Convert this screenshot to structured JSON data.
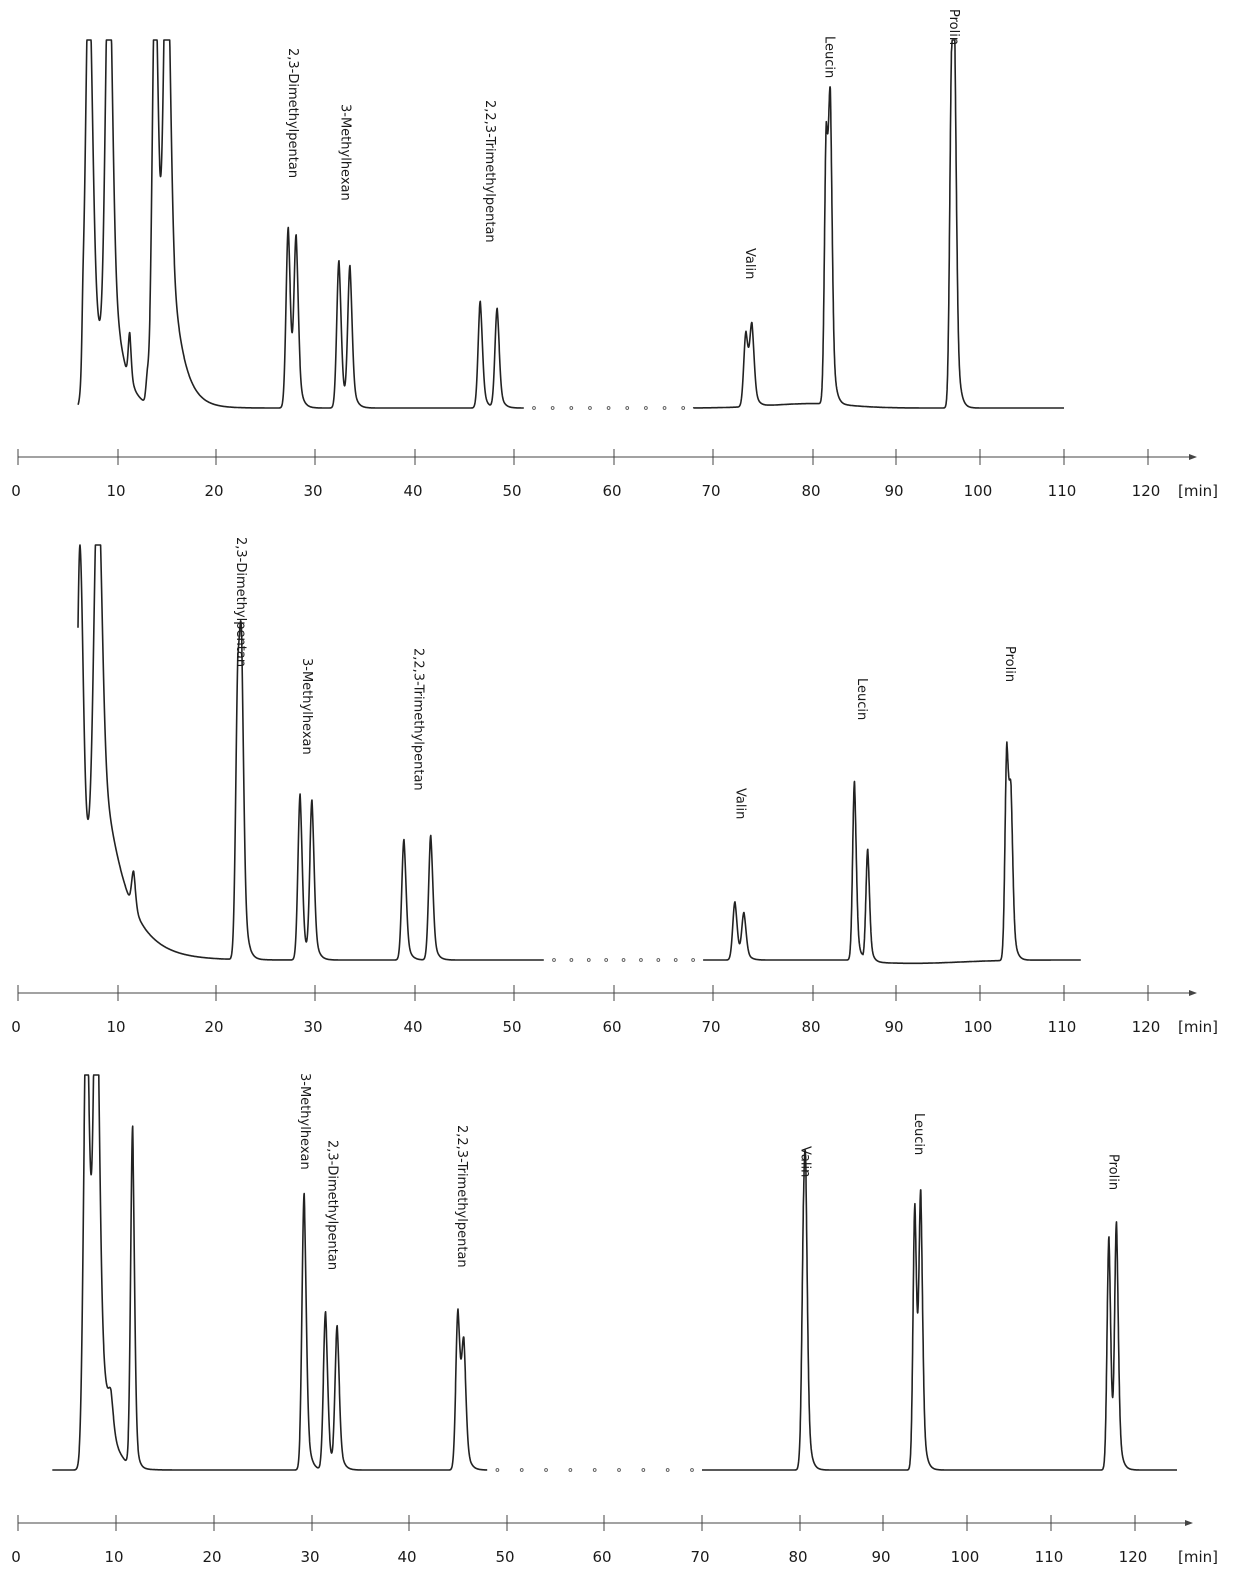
{
  "chart_data": [
    {
      "type": "line",
      "title": "",
      "xlabel": "[min]",
      "ylabel": "",
      "x_ticks": [
        "0",
        "10",
        "20",
        "30",
        "40",
        "50",
        "60",
        "70",
        "80",
        "90",
        "100",
        "110",
        "120"
      ],
      "tick_values": [
        0,
        10,
        20,
        30,
        40,
        50,
        60,
        70,
        80,
        90,
        100,
        110,
        120
      ],
      "x_unit": "[min]",
      "x_break": [
        51,
        68
      ],
      "solvent_peaks": [
        {
          "x": 6.5,
          "y": 0.1,
          "w": 0.1
        },
        {
          "x": 7.1,
          "y": 1.2,
          "w": 0.35,
          "tail": 1.2
        },
        {
          "x": 9.1,
          "y": 1.2,
          "w": 0.35,
          "tail": 1.0
        },
        {
          "x": 11.2,
          "y": 0.13,
          "w": 0.15
        },
        {
          "x": 13.0,
          "y": 0.06,
          "w": 0.15
        },
        {
          "x": 13.8,
          "y": 1.2,
          "w": 0.3,
          "tail": 1.0
        },
        {
          "x": 15.0,
          "y": 1.2,
          "w": 0.35,
          "tail": 1.2
        }
      ],
      "peaks": [
        {
          "name": "2,3-Dimethylpentan",
          "x": [
            27.3,
            28.1
          ],
          "y": [
            0.49,
            0.45
          ]
        },
        {
          "name": "3-Methylhexan",
          "x": [
            32.4,
            33.5
          ],
          "y": [
            0.4,
            0.38
          ]
        },
        {
          "name": "2,2,3-Trimethylpentan",
          "x": [
            46.6,
            48.3
          ],
          "y": [
            0.29,
            0.27
          ]
        },
        {
          "name": "Valin",
          "x": [
            73.3,
            73.9
          ],
          "y": [
            0.2,
            0.21
          ]
        },
        {
          "name": "Leucin",
          "x": [
            81.6,
            82.1
          ],
          "y": [
            0.71,
            0.75
          ]
        },
        {
          "name": "Prolin",
          "x": [
            96.6,
            97.0
          ],
          "y": [
            0.81,
            0.82
          ]
        }
      ],
      "ylim": [
        0,
        1
      ]
    },
    {
      "type": "line",
      "title": "",
      "xlabel": "[min]",
      "ylabel": "",
      "x_ticks": [
        "0",
        "10",
        "20",
        "30",
        "40",
        "50",
        "60",
        "70",
        "80",
        "90",
        "100",
        "110",
        "120"
      ],
      "tick_values": [
        0,
        10,
        20,
        30,
        40,
        50,
        60,
        70,
        80,
        90,
        100,
        110,
        120
      ],
      "x_unit": "[min]",
      "x_break": [
        53,
        69
      ],
      "solvent_peaks": [
        {
          "x": 6.2,
          "y": 1.0,
          "w": 0.3,
          "tail": 2.2
        },
        {
          "x": 8.0,
          "y": 1.0,
          "w": 0.4,
          "tail": 2.4
        },
        {
          "x": 11.6,
          "y": 0.09,
          "w": 0.2
        }
      ],
      "peaks": [
        {
          "name": "2,3-Dimethylpentan",
          "x": [
            22.2,
            22.6
          ],
          "y": [
            0.61,
            0.63
          ]
        },
        {
          "name": "3-Methylhexan",
          "x": [
            28.5,
            29.7
          ],
          "y": [
            0.4,
            0.38
          ]
        },
        {
          "name": "2,2,3-Trimethylpentan",
          "x": [
            38.9,
            41.6
          ],
          "y": [
            0.29,
            0.3
          ]
        },
        {
          "name": "Valin",
          "x": [
            72.2,
            73.1
          ],
          "y": [
            0.14,
            0.11
          ]
        },
        {
          "name": "Leucin",
          "x": [
            85.0,
            86.6
          ],
          "y": [
            0.43,
            0.27
          ]
        },
        {
          "name": "Prolin",
          "x": [
            103.2,
            103.7
          ],
          "y": [
            0.5,
            0.35
          ]
        }
      ],
      "ylim": [
        0,
        1
      ]
    },
    {
      "type": "line",
      "title": "",
      "xlabel": "[min]",
      "ylabel": "",
      "x_ticks": [
        "0",
        "10",
        "20",
        "30",
        "40",
        "50",
        "60",
        "70",
        "80",
        "90",
        "100",
        "110",
        "120"
      ],
      "tick_values": [
        0,
        10,
        20,
        30,
        40,
        50,
        60,
        70,
        80,
        90,
        100,
        110,
        120
      ],
      "x_unit": "[min]",
      "x_break": [
        48,
        70
      ],
      "solvent_peaks": [
        {
          "x": 7.0,
          "y": 1.2,
          "w": 0.3,
          "tail": 0.9
        },
        {
          "x": 8.0,
          "y": 1.2,
          "w": 0.3,
          "tail": 0.9
        },
        {
          "x": 9.5,
          "y": 0.08,
          "w": 0.25
        },
        {
          "x": 11.7,
          "y": 0.86,
          "w": 0.2
        }
      ],
      "peaks": [
        {
          "name": "3-Methylhexan",
          "x": [
            29.2
          ],
          "y": [
            0.7
          ]
        },
        {
          "name": "2,3-Dimethylpentan",
          "x": [
            31.4,
            32.6
          ],
          "y": [
            0.4,
            0.36
          ]
        },
        {
          "name": "2,2,3-Trimethylpentan",
          "x": [
            45.0,
            45.6
          ],
          "y": [
            0.4,
            0.3
          ]
        },
        {
          "name": "Valin",
          "x": [
            80.4,
            80.7
          ],
          "y": [
            0.43,
            0.6
          ]
        },
        {
          "name": "Leucin",
          "x": [
            93.8,
            94.5
          ],
          "y": [
            0.67,
            0.67
          ]
        },
        {
          "name": "Prolin",
          "x": [
            116.9,
            117.8
          ],
          "y": [
            0.59,
            0.61
          ]
        }
      ],
      "ylim": [
        0,
        1
      ]
    }
  ]
}
